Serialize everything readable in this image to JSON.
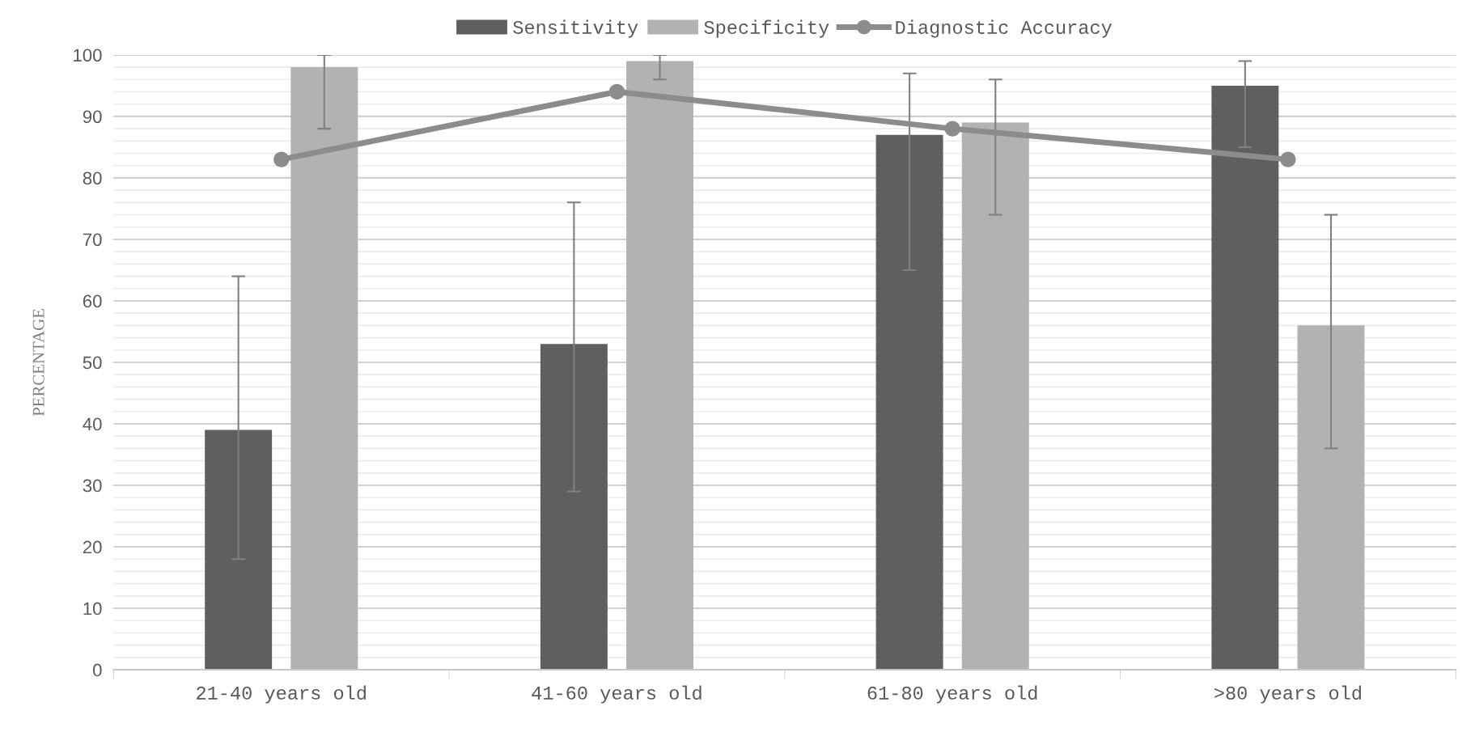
{
  "chart_data": {
    "type": "bar",
    "ylabel": "PERCENTAGE",
    "categories": [
      "21-40 years old",
      "41-60 years old",
      "61-80 years old",
      ">80 years old"
    ],
    "series": [
      {
        "name": "Sensitivity",
        "color": "#5f5f5f",
        "values": [
          39,
          53,
          87,
          95
        ],
        "errors": [
          [
            18,
            64
          ],
          [
            29,
            76
          ],
          [
            65,
            97
          ],
          [
            85,
            99
          ]
        ]
      },
      {
        "name": "Specificity",
        "color": "#b2b2b2",
        "values": [
          98,
          99,
          89,
          56
        ],
        "errors": [
          [
            88,
            100
          ],
          [
            96,
            100
          ],
          [
            74,
            96
          ],
          [
            36,
            74
          ]
        ]
      },
      {
        "name": "Diagnostic Accuracy",
        "type": "line",
        "color": "#8c8c8c",
        "values": [
          83,
          94,
          88,
          83
        ],
        "marker": "circle",
        "line_style": "solid"
      }
    ],
    "ylim": [
      0,
      100
    ],
    "yticks": [
      0,
      {
        "value": 2,
        "label": null
      },
      {
        "value": 4,
        "label": null
      },
      {
        "value": 6,
        "label": null
      },
      {
        "value": 8,
        "label": null
      },
      10,
      {
        "value": 12,
        "label": null
      },
      {
        "value": 14,
        "label": null
      },
      {
        "value": 16,
        "label": null
      },
      {
        "value": 18,
        "label": null
      },
      20,
      {
        "value": 22,
        "label": null
      },
      {
        "value": 24,
        "label": null
      },
      {
        "value": 26,
        "label": null
      },
      {
        "value": 28,
        "label": null
      },
      30,
      {
        "value": 32,
        "label": null
      },
      {
        "value": 34,
        "label": null
      },
      {
        "value": 36,
        "label": null
      },
      {
        "value": 38,
        "label": null
      },
      40,
      {
        "value": 42,
        "label": null
      },
      {
        "value": 44,
        "label": null
      },
      {
        "value": 46,
        "label": null
      },
      {
        "value": 48,
        "label": null
      },
      50,
      {
        "value": 52,
        "label": null
      },
      {
        "value": 54,
        "label": null
      },
      {
        "value": 56,
        "label": null
      },
      {
        "value": 58,
        "label": null
      },
      60,
      {
        "value": 62,
        "label": null
      },
      {
        "value": 64,
        "label": null
      },
      {
        "value": 66,
        "label": null
      },
      {
        "value": 68,
        "label": null
      },
      70,
      {
        "value": 72,
        "label": null
      },
      {
        "value": 74,
        "label": null
      },
      {
        "value": 76,
        "label": null
      },
      {
        "value": 78,
        "label": null
      },
      80,
      {
        "value": 82,
        "label": null
      },
      {
        "value": 84,
        "label": null
      },
      {
        "value": 86,
        "label": null
      },
      {
        "value": 88,
        "label": null
      },
      90,
      {
        "value": 92,
        "label": null
      },
      {
        "value": 94,
        "label": null
      },
      {
        "value": 96,
        "label": null
      },
      {
        "value": 98,
        "label": null
      },
      100
    ],
    "grid": "y",
    "legend": "top"
  }
}
